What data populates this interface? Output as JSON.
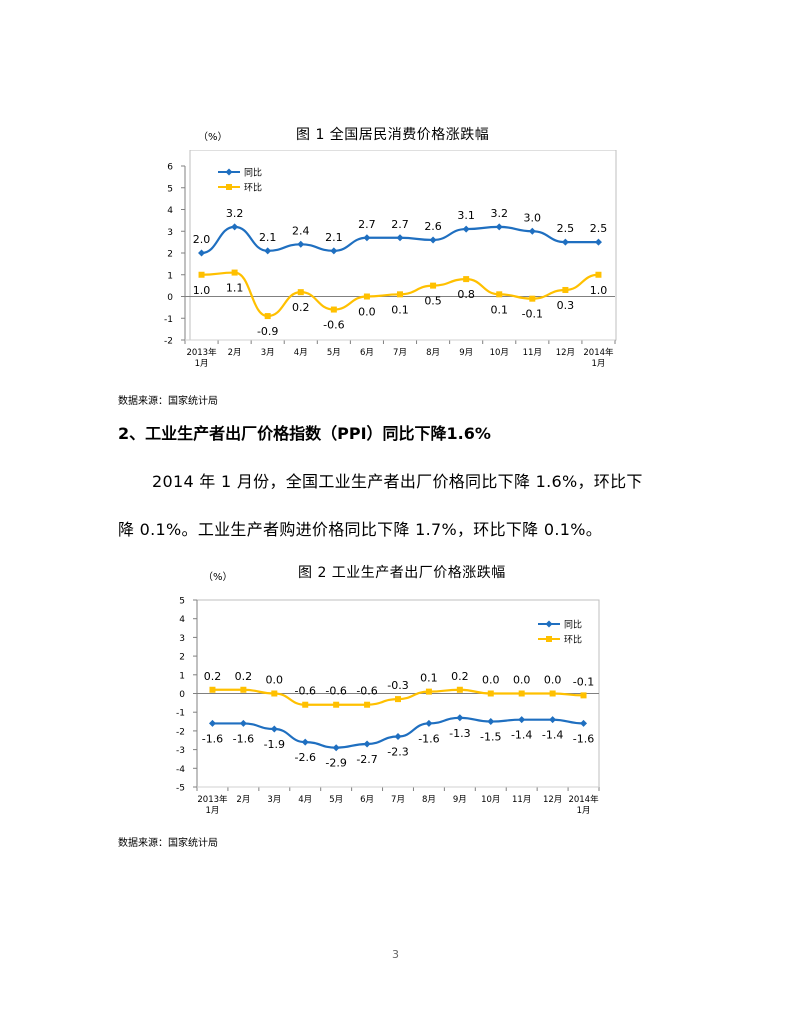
{
  "chart1": {
    "unit": "（%）",
    "title": "图 1    全国居民消费价格涨跌幅",
    "source": "数据来源：国家统计局",
    "chart_data": {
      "type": "line",
      "categories": [
        "2013年1月",
        "2月",
        "3月",
        "4月",
        "5月",
        "6月",
        "7月",
        "8月",
        "9月",
        "10月",
        "11月",
        "12月",
        "2014年1月"
      ],
      "series": [
        {
          "name": "同比",
          "color": "#1f6fc0",
          "values": [
            2.0,
            3.2,
            2.1,
            2.4,
            2.1,
            2.7,
            2.7,
            2.6,
            3.1,
            3.2,
            3.0,
            2.5,
            2.5
          ]
        },
        {
          "name": "环比",
          "color": "#ffc000",
          "values": [
            1.0,
            1.1,
            -0.9,
            0.2,
            -0.6,
            0.0,
            0.1,
            0.5,
            0.8,
            0.1,
            -0.1,
            0.3,
            1.0
          ]
        }
      ],
      "ylim": [
        -2,
        6
      ],
      "yticks": [
        -2,
        -1,
        0,
        1,
        2,
        3,
        4,
        5,
        6
      ],
      "grid": false,
      "legend": "top-left"
    }
  },
  "section2": {
    "heading": "2、工业生产者出厂价格指数（PPI）同比下降1.6%",
    "para_line1": "2014 年 1 月份，全国工业生产者出厂价格同比下降 1.6%，环比下",
    "para_line2": "降 0.1%。工业生产者购进价格同比下降 1.7%，环比下降 0.1%。"
  },
  "chart2": {
    "unit": "（%）",
    "title": "图 2    工业生产者出厂价格涨跌幅",
    "source": "数据来源：国家统计局",
    "chart_data": {
      "type": "line",
      "categories": [
        "2013年1月",
        "2月",
        "3月",
        "4月",
        "5月",
        "6月",
        "7月",
        "8月",
        "9月",
        "10月",
        "11月",
        "12月",
        "2014年1月"
      ],
      "series": [
        {
          "name": "同比",
          "color": "#1f6fc0",
          "values": [
            -1.6,
            -1.6,
            -1.9,
            -2.6,
            -2.9,
            -2.7,
            -2.3,
            -1.6,
            -1.3,
            -1.5,
            -1.4,
            -1.4,
            -1.6
          ]
        },
        {
          "name": "环比",
          "color": "#ffc000",
          "values": [
            0.2,
            0.2,
            0.0,
            -0.6,
            -0.6,
            -0.6,
            -0.3,
            0.1,
            0.2,
            0.0,
            0.0,
            0.0,
            -0.1
          ]
        }
      ],
      "ylim": [
        -5,
        5
      ],
      "yticks": [
        -5,
        -4,
        -3,
        -2,
        -1,
        0,
        1,
        2,
        3,
        4,
        5
      ],
      "grid": false,
      "legend": "top-right"
    }
  },
  "page_number": "3"
}
